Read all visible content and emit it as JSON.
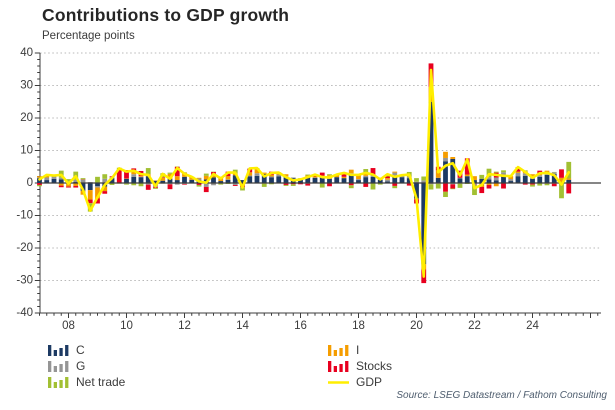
{
  "chart": {
    "title": "Contributions to GDP growth",
    "subtitle": "Percentage points",
    "source": "Source: LSEG Datastream / Fathom Consulting"
  },
  "legend": {
    "left": [
      {
        "label": "C",
        "color": "#1d3a63",
        "marker": "bars"
      },
      {
        "label": "G",
        "color": "#959595",
        "marker": "bars"
      },
      {
        "label": "Net trade",
        "color": "#a2c033",
        "marker": "bars"
      }
    ],
    "right": [
      {
        "label": "I",
        "color": "#f59d00",
        "marker": "bars"
      },
      {
        "label": "Stocks",
        "color": "#e8001f",
        "marker": "bars"
      },
      {
        "label": "GDP",
        "color": "#ffee00",
        "marker": "line"
      }
    ]
  },
  "chart_data": {
    "type": "bar",
    "stacked": true,
    "overlay_line": "GDP",
    "title": "Contributions to GDP growth",
    "ylabel": "Percentage points",
    "ylim": [
      -40,
      40
    ],
    "ytick_step": 10,
    "grid": "dotted horizontal",
    "x_frequency": "quarterly",
    "x_start": "2007Q1",
    "x_tick_labels": [
      "08",
      "10",
      "12",
      "14",
      "16",
      "18",
      "20",
      "22",
      "24"
    ],
    "series": [
      {
        "name": "C",
        "color": "#1d3a63",
        "values": [
          1.5,
          0.9,
          1.3,
          1.1,
          -0.2,
          0.3,
          -2.4,
          -2.2,
          -1.0,
          -1.1,
          1.5,
          0.1,
          1.3,
          1.9,
          1.8,
          2.1,
          0.7,
          0.7,
          1.2,
          0.9,
          1.9,
          1.0,
          0.9,
          1.1,
          1.7,
          0.6,
          1.0,
          2.4,
          0.9,
          2.0,
          2.2,
          2.8,
          1.7,
          2.0,
          1.8,
          1.5,
          1.1,
          2.0,
          1.6,
          1.9,
          1.3,
          1.8,
          1.5,
          2.6,
          0.9,
          1.8,
          1.9,
          1.0,
          0.5,
          2.4,
          1.8,
          1.5,
          -4.8,
          -25.0,
          25.0,
          1.6,
          6.7,
          7.4,
          1.4,
          2.1,
          0.9,
          1.3,
          1.1,
          0.8,
          2.5,
          0.6,
          2.1,
          2.2,
          1.3,
          1.9,
          2.5,
          2.8,
          0.3,
          1.0
        ]
      },
      {
        "name": "G",
        "color": "#959595",
        "values": [
          0.2,
          0.8,
          0.8,
          0.5,
          0.5,
          0.7,
          1.0,
          0.3,
          -0.4,
          1.3,
          0.3,
          -0.1,
          -0.2,
          0.8,
          0.1,
          -0.5,
          -1.2,
          -0.2,
          -0.4,
          -0.5,
          -0.3,
          -0.1,
          0.5,
          -1.2,
          -0.7,
          0.0,
          0.1,
          -0.6,
          0.0,
          0.3,
          0.8,
          -0.1,
          0.3,
          0.6,
          0.3,
          0.2,
          0.3,
          -0.2,
          0.1,
          0.1,
          0.0,
          0.0,
          0.0,
          0.4,
          0.3,
          0.4,
          0.4,
          -0.1,
          0.5,
          0.8,
          0.4,
          0.4,
          0.4,
          0.8,
          -0.4,
          -0.2,
          1.0,
          -0.4,
          0.2,
          -0.1,
          -0.5,
          -0.3,
          0.7,
          0.9,
          0.8,
          0.6,
          1.0,
          0.8,
          0.3,
          0.5,
          0.9,
          0.5,
          -0.1,
          0.0
        ]
      },
      {
        "name": "I",
        "color": "#f59d00",
        "values": [
          0.4,
          0.5,
          -0.1,
          -0.8,
          -0.9,
          -0.9,
          -1.2,
          -2.9,
          -3.3,
          -1.4,
          0.1,
          -0.1,
          0.1,
          1.0,
          0.2,
          0.6,
          0.1,
          0.9,
          1.6,
          1.2,
          1.3,
          0.7,
          0.2,
          1.1,
          0.7,
          0.9,
          1.0,
          0.6,
          0.0,
          1.0,
          1.2,
          0.4,
          0.5,
          0.7,
          0.6,
          -0.1,
          0.0,
          0.3,
          0.3,
          0.3,
          1.1,
          0.6,
          0.4,
          1.1,
          1.1,
          0.9,
          0.2,
          0.5,
          0.5,
          0.3,
          0.2,
          0.1,
          -0.2,
          -1.6,
          4.6,
          2.3,
          1.9,
          0.6,
          -0.2,
          0.5,
          1.2,
          -0.9,
          -0.6,
          -1.0,
          -0.1,
          0.9,
          0.4,
          0.6,
          1.1,
          0.4,
          0.4,
          -0.2,
          1.3,
          0.4
        ]
      },
      {
        "name": "Stocks",
        "color": "#e8001f",
        "values": [
          -0.6,
          0.1,
          0.0,
          -0.5,
          -0.3,
          -0.5,
          0.1,
          -1.1,
          -1.6,
          -0.8,
          0.2,
          3.9,
          2.6,
          0.8,
          1.6,
          -1.6,
          -0.3,
          0.2,
          -1.5,
          2.9,
          -0.2,
          0.2,
          -0.6,
          -1.6,
          1.0,
          0.4,
          1.4,
          -0.3,
          -1.3,
          1.1,
          0.0,
          -0.1,
          1.0,
          0.0,
          -0.6,
          -0.3,
          -0.4,
          -0.6,
          0.2,
          0.9,
          -1.0,
          0.0,
          0.9,
          -0.7,
          0.2,
          -1.2,
          2.1,
          0.1,
          0.5,
          -0.9,
          0.0,
          -0.8,
          -1.3,
          -4.2,
          7.2,
          1.1,
          -2.7,
          -1.3,
          2.2,
          5.0,
          -0.1,
          -1.9,
          -1.1,
          1.5,
          -1.6,
          0.0,
          1.3,
          -0.5,
          -0.5,
          1.0,
          -0.2,
          -0.8,
          2.6,
          -3.2
        ]
      },
      {
        "name": "Net trade",
        "color": "#a2c033",
        "values": [
          -0.4,
          0.2,
          0.3,
          2.2,
          0.7,
          2.5,
          0.4,
          -2.6,
          1.9,
          1.4,
          -0.6,
          0.7,
          -0.3,
          -0.7,
          -1.0,
          1.9,
          -0.3,
          1.2,
          0.4,
          0.1,
          0.1,
          0.1,
          -0.5,
          0.7,
          0.1,
          -0.5,
          -0.3,
          1.1,
          -1.0,
          0.1,
          0.4,
          -1.0,
          -0.4,
          -0.1,
          -0.3,
          -0.5,
          0.1,
          0.3,
          0.4,
          -1.4,
          0.3,
          0.2,
          0.3,
          -0.9,
          0.0,
          1.2,
          -2.0,
          -0.4,
          0.7,
          -0.7,
          0.0,
          1.4,
          1.1,
          1.2,
          -1.6,
          -1.5,
          -1.6,
          -0.2,
          -1.3,
          -0.2,
          -3.1,
          1.2,
          2.6,
          0.3,
          0.6,
          0.0,
          0.1,
          0.3,
          -0.6,
          -0.8,
          -0.5,
          0.1,
          -4.6,
          5.1
        ]
      }
    ],
    "gdp_line": {
      "name": "GDP",
      "color": "#ffee00",
      "values": [
        1.1,
        2.5,
        2.3,
        2.5,
        -0.2,
        2.1,
        -2.1,
        -8.5,
        -4.4,
        -0.6,
        1.5,
        4.5,
        3.5,
        3.8,
        2.7,
        2.5,
        -1.0,
        2.8,
        1.3,
        4.6,
        2.8,
        1.9,
        0.5,
        0.1,
        2.8,
        1.4,
        3.2,
        3.2,
        -1.4,
        4.5,
        4.6,
        2.0,
        3.1,
        3.2,
        1.8,
        0.8,
        1.1,
        1.8,
        2.6,
        1.8,
        1.7,
        2.6,
        3.1,
        2.5,
        2.5,
        3.1,
        2.6,
        1.1,
        2.7,
        1.9,
        2.4,
        2.6,
        -4.8,
        -28.8,
        34.8,
        3.3,
        5.3,
        6.1,
        2.3,
        7.3,
        -1.6,
        -0.6,
        2.7,
        2.5,
        2.2,
        2.1,
        4.9,
        3.4,
        1.6,
        3.0,
        3.1,
        2.4,
        -0.5,
        3.3
      ]
    }
  }
}
